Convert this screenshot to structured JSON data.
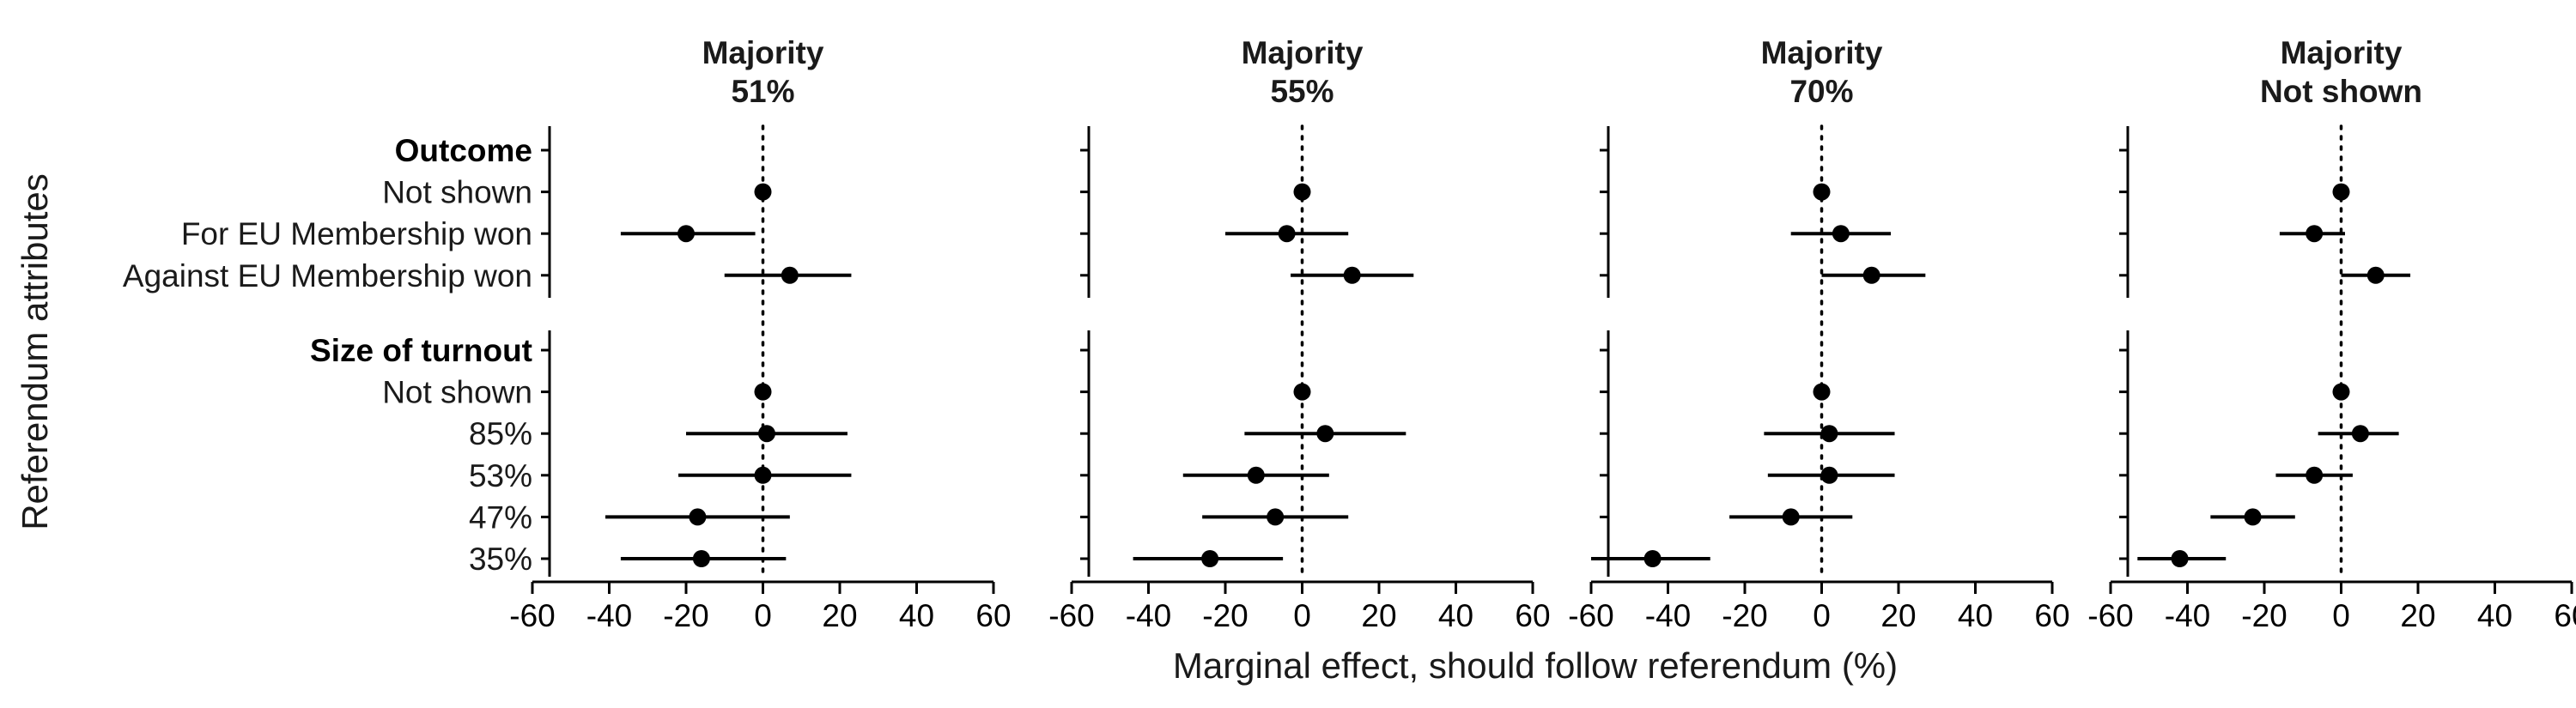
{
  "chart_data": {
    "type": "scatter",
    "subtype": "coefficient-plot-with-error-bars",
    "xlabel": "Marginal effect, should follow referendum (%)",
    "ylabel": "Referendum attributes",
    "xlim": [
      -60,
      60
    ],
    "xticks": [
      -60,
      -40,
      -20,
      0,
      20,
      40,
      60
    ],
    "reference_line_x": 0,
    "grid": false,
    "groups": [
      {
        "label": "Outcome",
        "categories": [
          "Not shown",
          "For EU Membership won",
          "Against EU Membership won"
        ]
      },
      {
        "label": "Size of turnout",
        "categories": [
          "Not shown",
          "85%",
          "53%",
          "47%",
          "35%"
        ]
      }
    ],
    "panels": [
      {
        "title": [
          "Majority",
          "51%"
        ],
        "estimates": [
          {
            "group": "Outcome",
            "category": "Not shown",
            "value": 0,
            "ci": [
              0,
              0
            ]
          },
          {
            "group": "Outcome",
            "category": "For EU Membership won",
            "value": -20,
            "ci": [
              -37,
              -2
            ]
          },
          {
            "group": "Outcome",
            "category": "Against EU Membership won",
            "value": 7,
            "ci": [
              -10,
              23
            ]
          },
          {
            "group": "Size of turnout",
            "category": "Not shown",
            "value": 0,
            "ci": [
              0,
              0
            ]
          },
          {
            "group": "Size of turnout",
            "category": "85%",
            "value": 1,
            "ci": [
              -20,
              22
            ]
          },
          {
            "group": "Size of turnout",
            "category": "53%",
            "value": 0,
            "ci": [
              -22,
              23
            ]
          },
          {
            "group": "Size of turnout",
            "category": "47%",
            "value": -17,
            "ci": [
              -41,
              7
            ]
          },
          {
            "group": "Size of turnout",
            "category": "35%",
            "value": -16,
            "ci": [
              -37,
              6
            ]
          }
        ]
      },
      {
        "title": [
          "Majority",
          "55%"
        ],
        "estimates": [
          {
            "group": "Outcome",
            "category": "Not shown",
            "value": 0,
            "ci": [
              0,
              0
            ]
          },
          {
            "group": "Outcome",
            "category": "For EU Membership won",
            "value": -4,
            "ci": [
              -20,
              12
            ]
          },
          {
            "group": "Outcome",
            "category": "Against EU Membership won",
            "value": 13,
            "ci": [
              -3,
              29
            ]
          },
          {
            "group": "Size of turnout",
            "category": "Not shown",
            "value": 0,
            "ci": [
              0,
              0
            ]
          },
          {
            "group": "Size of turnout",
            "category": "85%",
            "value": 6,
            "ci": [
              -15,
              27
            ]
          },
          {
            "group": "Size of turnout",
            "category": "53%",
            "value": -12,
            "ci": [
              -31,
              7
            ]
          },
          {
            "group": "Size of turnout",
            "category": "47%",
            "value": -7,
            "ci": [
              -26,
              12
            ]
          },
          {
            "group": "Size of turnout",
            "category": "35%",
            "value": -24,
            "ci": [
              -44,
              -5
            ]
          }
        ]
      },
      {
        "title": [
          "Majority",
          "70%"
        ],
        "estimates": [
          {
            "group": "Outcome",
            "category": "Not shown",
            "value": 0,
            "ci": [
              0,
              0
            ]
          },
          {
            "group": "Outcome",
            "category": "For EU Membership won",
            "value": 5,
            "ci": [
              -8,
              18
            ]
          },
          {
            "group": "Outcome",
            "category": "Against EU Membership won",
            "value": 13,
            "ci": [
              0,
              27
            ]
          },
          {
            "group": "Size of turnout",
            "category": "Not shown",
            "value": 0,
            "ci": [
              0,
              0
            ]
          },
          {
            "group": "Size of turnout",
            "category": "85%",
            "value": 2,
            "ci": [
              -15,
              19
            ]
          },
          {
            "group": "Size of turnout",
            "category": "53%",
            "value": 2,
            "ci": [
              -14,
              19
            ]
          },
          {
            "group": "Size of turnout",
            "category": "47%",
            "value": -8,
            "ci": [
              -24,
              8
            ]
          },
          {
            "group": "Size of turnout",
            "category": "35%",
            "value": -44,
            "ci": [
              -60,
              -29
            ]
          }
        ]
      },
      {
        "title": [
          "Majority",
          "Not shown"
        ],
        "estimates": [
          {
            "group": "Outcome",
            "category": "Not shown",
            "value": 0,
            "ci": [
              0,
              0
            ]
          },
          {
            "group": "Outcome",
            "category": "For EU Membership won",
            "value": -7,
            "ci": [
              -16,
              1
            ]
          },
          {
            "group": "Outcome",
            "category": "Against EU Membership won",
            "value": 9,
            "ci": [
              0,
              18
            ]
          },
          {
            "group": "Size of turnout",
            "category": "Not shown",
            "value": 0,
            "ci": [
              0,
              0
            ]
          },
          {
            "group": "Size of turnout",
            "category": "85%",
            "value": 5,
            "ci": [
              -6,
              15
            ]
          },
          {
            "group": "Size of turnout",
            "category": "53%",
            "value": -7,
            "ci": [
              -17,
              3
            ]
          },
          {
            "group": "Size of turnout",
            "category": "47%",
            "value": -23,
            "ci": [
              -34,
              -12
            ]
          },
          {
            "group": "Size of turnout",
            "category": "35%",
            "value": -42,
            "ci": [
              -53,
              -30
            ]
          }
        ]
      }
    ]
  }
}
